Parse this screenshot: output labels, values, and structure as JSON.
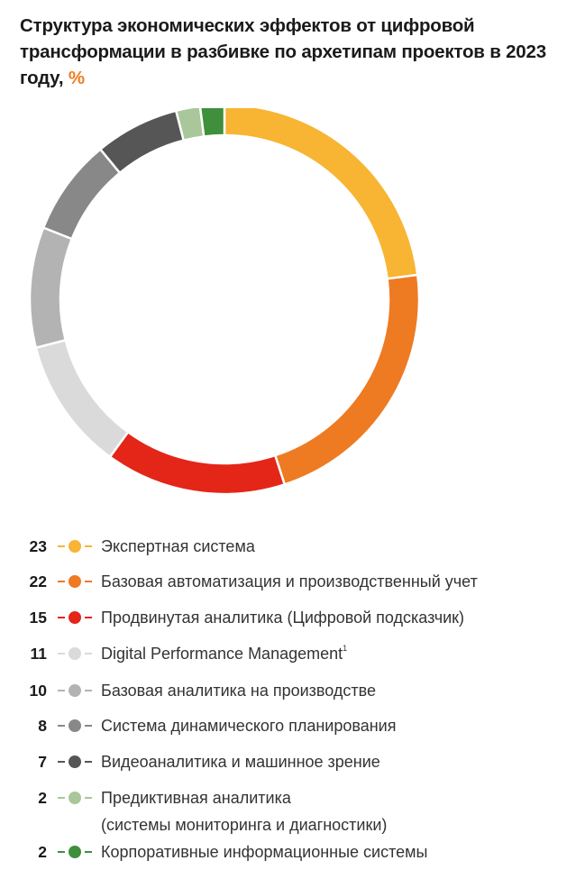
{
  "title": {
    "main": "Структура экономических эффектов от цифровой трансформации в разбивке по архетипам проектов в 2023 году,",
    "unit": "%"
  },
  "chart_data": {
    "type": "pie",
    "donut": true,
    "title": "Структура экономических эффектов от цифровой трансформации в разбивке по архетипам проектов в 2023 году, %",
    "legend_placement": "bottom",
    "slices": [
      {
        "value": 23,
        "label": "Экспертная система",
        "color": "#f8b433"
      },
      {
        "value": 22,
        "label": "Базовая автоматизация и производственный учет",
        "color": "#ee7a22"
      },
      {
        "value": 15,
        "label": "Продвинутая аналитика (Цифровой подсказчик)",
        "color": "#e32618"
      },
      {
        "value": 11,
        "label": "Digital Performance Management",
        "footnote": "1",
        "color": "#dadada"
      },
      {
        "value": 10,
        "label": "Базовая аналитика на производстве",
        "color": "#b3b3b3"
      },
      {
        "value": 8,
        "label": "Система динамического планирования",
        "color": "#888888"
      },
      {
        "value": 7,
        "label": "Видеоаналитика и машинное зрение",
        "color": "#565656"
      },
      {
        "value": 2,
        "label": "Предиктивная аналитика",
        "label_line2": "(системы мониторинга и диагностики)",
        "color": "#a9c79a"
      },
      {
        "value": 2,
        "label": "Корпоративные информационные системы",
        "color": "#3f8f3c"
      }
    ]
  }
}
